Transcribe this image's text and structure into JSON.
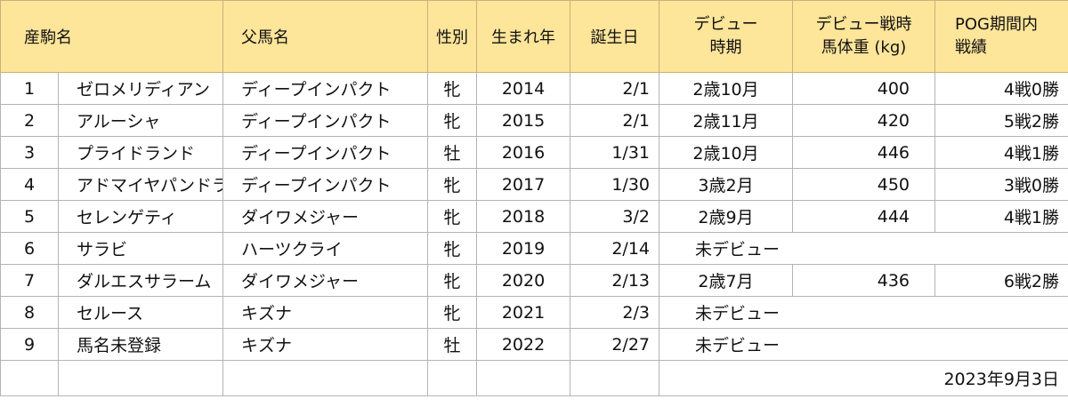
{
  "headers": {
    "name": "産駒名",
    "sire": "父馬名",
    "sex": "性別",
    "year": "生まれ年",
    "birthday": "誕生日",
    "debut_line1": "デビュー",
    "debut_line2": "時期",
    "weight_line1": "デビュー戦時",
    "weight_line2": "馬体重 (kg)",
    "pog_line1": "POG期間内",
    "pog_line2": "戦績"
  },
  "rows": [
    {
      "no": "1",
      "name": "ゼロメリディアン",
      "sire": "ディープインパクト",
      "sex": "牝",
      "year": "2014",
      "birthday": "2/1",
      "debut": "2歳10月",
      "weight": "400",
      "record": "4戦0勝"
    },
    {
      "no": "2",
      "name": "アルーシャ",
      "sire": "ディープインパクト",
      "sex": "牝",
      "year": "2015",
      "birthday": "2/1",
      "debut": "2歳11月",
      "weight": "420",
      "record": "5戦2勝"
    },
    {
      "no": "3",
      "name": "プライドランド",
      "sire": "ディープインパクト",
      "sex": "牡",
      "year": "2016",
      "birthday": "1/31",
      "debut": "2歳10月",
      "weight": "446",
      "record": "4戦1勝"
    },
    {
      "no": "4",
      "name": "アドマイヤパンドラ",
      "sire": "ディープインパクト",
      "sex": "牝",
      "year": "2017",
      "birthday": "1/30",
      "debut": "3歳2月",
      "weight": "450",
      "record": "3戦0勝"
    },
    {
      "no": "5",
      "name": "セレンゲティ",
      "sire": "ダイワメジャー",
      "sex": "牝",
      "year": "2018",
      "birthday": "3/2",
      "debut": "2歳9月",
      "weight": "444",
      "record": "4戦1勝"
    },
    {
      "no": "6",
      "name": "サラビ",
      "sire": "ハーツクライ",
      "sex": "牝",
      "year": "2019",
      "birthday": "2/14",
      "debut": "未デビュー",
      "weight": "",
      "record": ""
    },
    {
      "no": "7",
      "name": "ダルエスサラーム",
      "sire": "ダイワメジャー",
      "sex": "牝",
      "year": "2020",
      "birthday": "2/13",
      "debut": "2歳7月",
      "weight": "436",
      "record": "6戦2勝"
    },
    {
      "no": "8",
      "name": "セルース",
      "sire": "キズナ",
      "sex": "牝",
      "year": "2021",
      "birthday": "2/3",
      "debut": "未デビュー",
      "weight": "",
      "record": ""
    },
    {
      "no": "9",
      "name": "馬名未登録",
      "sire": "キズナ",
      "sex": "牡",
      "year": "2022",
      "birthday": "2/27",
      "debut": "未デビュー",
      "weight": "",
      "record": ""
    }
  ],
  "footer": {
    "date": "2023年9月3日"
  }
}
